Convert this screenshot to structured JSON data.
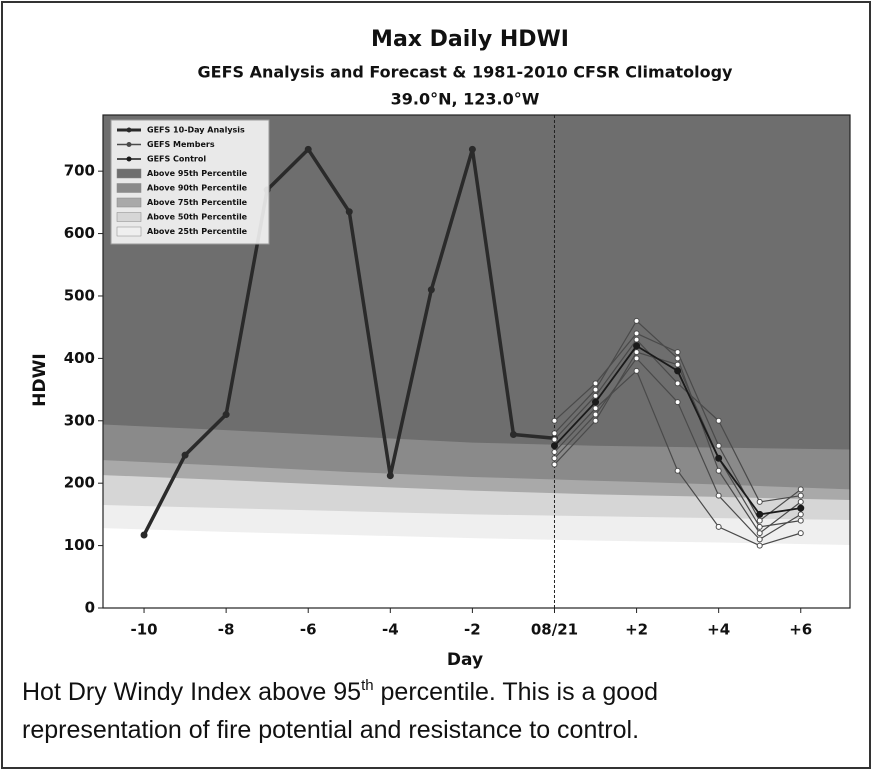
{
  "chart_data": {
    "type": "line",
    "title": "Max Daily HDWI",
    "subtitle": "GEFS Analysis and Forecast & 1981-2010 CFSR Climatology",
    "location": "39.0°N, 123.0°W",
    "xlabel": "Day",
    "ylabel": "HDWI",
    "xlim": [
      -11,
      7.2
    ],
    "ylim": [
      0,
      790
    ],
    "xticks": [
      -10,
      -8,
      -6,
      -4,
      -2,
      {
        "value": 0,
        "label": "08/21"
      },
      {
        "value": 2,
        "label": "+2"
      },
      {
        "value": 4,
        "label": "+4"
      },
      {
        "value": 6,
        "label": "+6"
      }
    ],
    "yticks": [
      0,
      100,
      200,
      300,
      400,
      500,
      600,
      700
    ],
    "legend": "upper left",
    "vline": 0,
    "series": [
      {
        "name": "GEFS 10-Day Analysis",
        "color": "#2a2a2a",
        "x": [
          -10,
          -9,
          -8,
          -7,
          -6,
          -5,
          -4,
          -3,
          -2,
          -1,
          0
        ],
        "values": [
          117,
          245,
          310,
          670,
          735,
          635,
          212,
          510,
          735,
          278,
          272
        ]
      },
      {
        "name": "GEFS Members",
        "color": "#4a4a4a",
        "x": [
          0,
          1,
          2,
          3,
          4,
          5,
          6
        ],
        "values": [
          [
            280,
            350,
            460,
            400,
            220,
            120,
            170
          ],
          [
            240,
            310,
            400,
            330,
            180,
            110,
            150
          ],
          [
            300,
            360,
            440,
            410,
            260,
            140,
            190
          ],
          [
            250,
            320,
            380,
            220,
            130,
            100,
            120
          ],
          [
            270,
            340,
            430,
            360,
            300,
            170,
            180
          ],
          [
            230,
            300,
            410,
            390,
            240,
            130,
            140
          ]
        ]
      },
      {
        "name": "GEFS Control",
        "color": "#1a1a1a",
        "x": [
          0,
          1,
          2,
          3,
          4,
          5,
          6
        ],
        "values": [
          260,
          330,
          420,
          380,
          240,
          150,
          160
        ]
      }
    ],
    "bands": [
      {
        "name": "Above 95th Percentile",
        "color": "#6e6e6e",
        "x": [
          -11,
          -8,
          -5,
          -2,
          1,
          4,
          7.2
        ],
        "values": [
          294,
          285,
          275,
          265,
          260,
          257,
          254
        ]
      },
      {
        "name": "Above 90th Percentile",
        "color": "#8a8a8a",
        "x": [
          -11,
          -8,
          -5,
          -2,
          1,
          4,
          7.2
        ],
        "values": [
          237,
          228,
          218,
          210,
          204,
          198,
          190
        ]
      },
      {
        "name": "Above 75th Percentile",
        "color": "#a9a9a9",
        "x": [
          -11,
          -8,
          -5,
          -2,
          1,
          4,
          7.2
        ],
        "values": [
          213,
          205,
          196,
          188,
          182,
          178,
          173
        ]
      },
      {
        "name": "Above 50th Percentile",
        "color": "#d6d6d6",
        "x": [
          -11,
          -8,
          -5,
          -2,
          1,
          4,
          7.2
        ],
        "values": [
          165,
          160,
          155,
          150,
          147,
          144,
          141
        ]
      },
      {
        "name": "Above 25th Percentile",
        "color": "#efefef",
        "x": [
          -11,
          -8,
          -5,
          -2,
          1,
          4,
          7.2
        ],
        "values": [
          128,
          122,
          117,
          112,
          108,
          105,
          101
        ]
      }
    ]
  },
  "caption": {
    "before": "Hot Dry Windy Index above 95",
    "sup": "th",
    "after": " percentile. This is a good",
    "line2": "representation of fire potential and resistance to control."
  }
}
